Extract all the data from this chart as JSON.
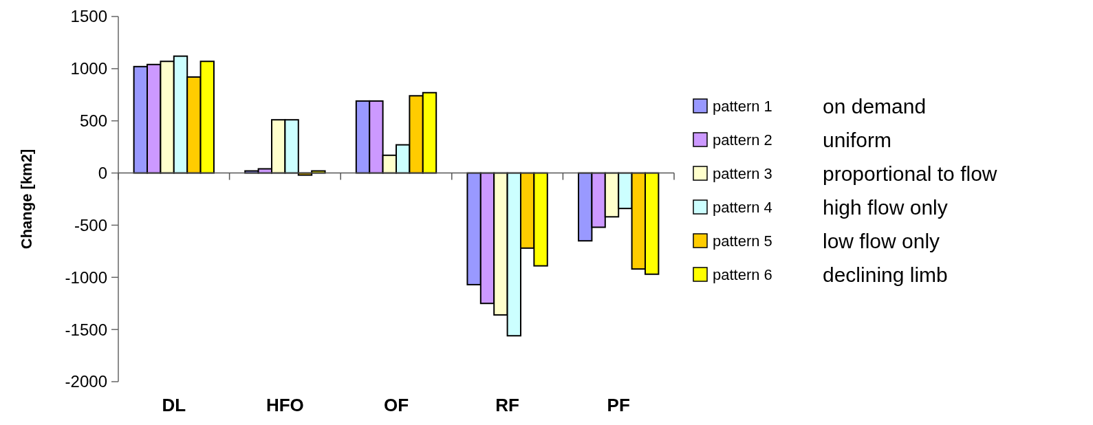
{
  "chart_data": {
    "type": "bar",
    "ylabel": "Change [km2]",
    "categories": [
      "DL",
      "HFO",
      "OF",
      "RF",
      "PF"
    ],
    "series": [
      {
        "name": "pattern 1",
        "color": "#9999ff",
        "values": [
          1020,
          20,
          690,
          -1070,
          -650
        ]
      },
      {
        "name": "pattern 2",
        "color": "#cc99ff",
        "values": [
          1040,
          40,
          690,
          -1250,
          -520
        ]
      },
      {
        "name": "pattern 3",
        "color": "#ffffcc",
        "values": [
          1070,
          510,
          170,
          -1360,
          -420
        ]
      },
      {
        "name": "pattern 4",
        "color": "#ccffff",
        "values": [
          1120,
          510,
          270,
          -1560,
          -340
        ]
      },
      {
        "name": "pattern 5",
        "color": "#ffcc00",
        "values": [
          920,
          -20,
          740,
          -720,
          -920
        ]
      },
      {
        "name": "pattern 6",
        "color": "#ffff00",
        "values": [
          1070,
          20,
          770,
          -890,
          -970
        ]
      }
    ],
    "annotations": [
      "on demand",
      "uniform",
      "proportional to flow",
      "high flow only",
      "low flow only",
      "declining limb"
    ],
    "ylim": [
      -2000,
      1500
    ],
    "yticks": [
      -2000,
      -1500,
      -1000,
      -500,
      0,
      500,
      1000,
      1500
    ],
    "legend": "right"
  }
}
